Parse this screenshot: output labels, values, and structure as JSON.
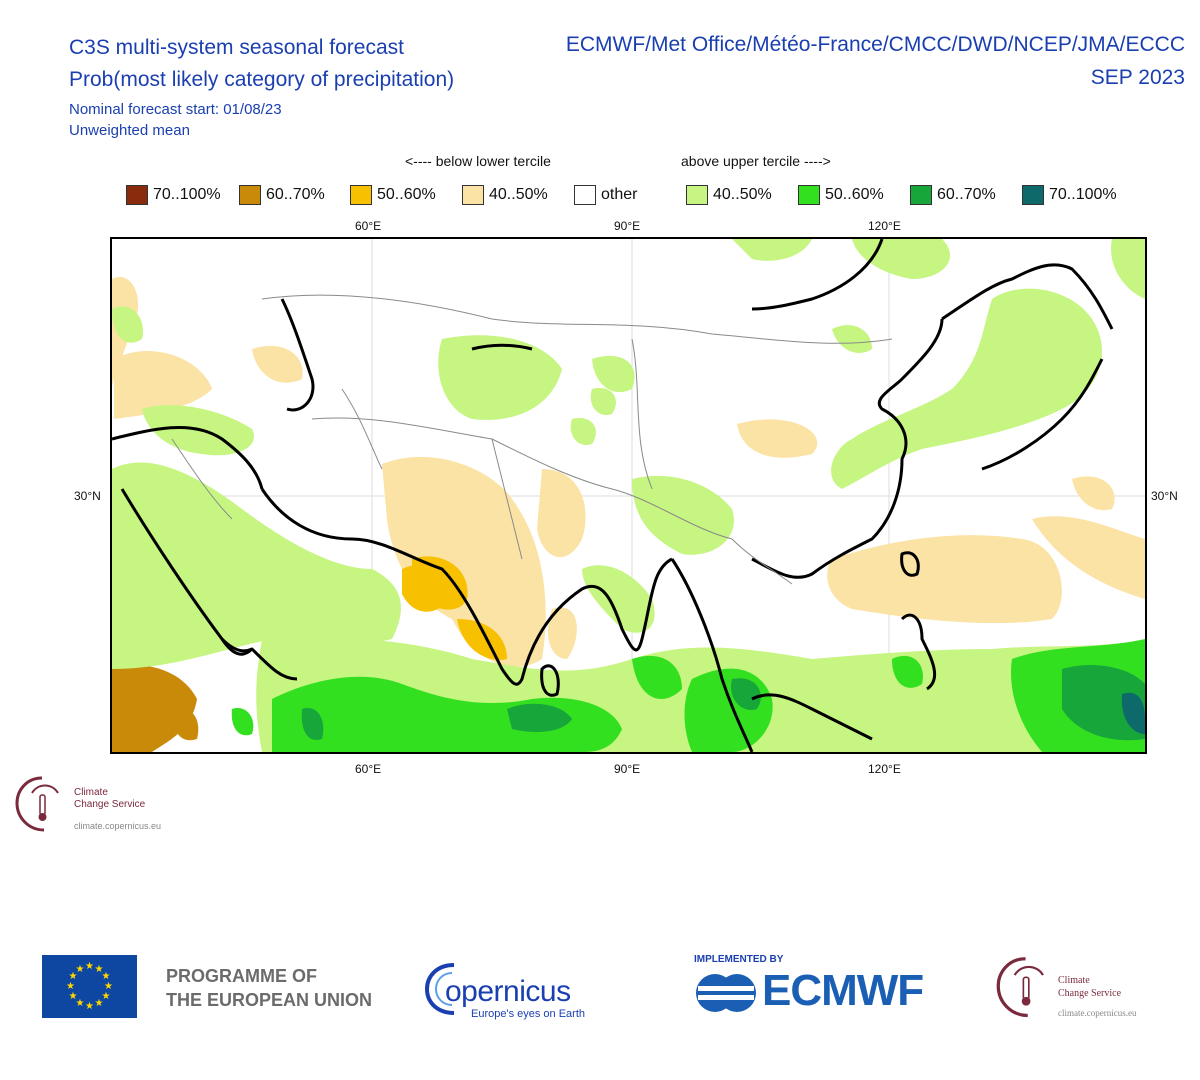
{
  "header": {
    "title_line1": "C3S multi-system seasonal forecast",
    "title_line2": "Prob(most likely category of precipitation)",
    "start": "Nominal forecast start: 01/08/23",
    "mean": "Unweighted mean",
    "models": "ECMWF/Met Office/Météo-France/CMCC/DWD/NCEP/JMA/ECCC",
    "month": "SEP 2023"
  },
  "legend": {
    "below_caption": "<---- below lower tercile",
    "above_caption": "above upper tercile ---->",
    "items": [
      {
        "label": "70..100%",
        "color": "#8b2b0e"
      },
      {
        "label": "60..70%",
        "color": "#c98a0a"
      },
      {
        "label": "50..60%",
        "color": "#f7c000"
      },
      {
        "label": "40..50%",
        "color": "#fbe3a5"
      },
      {
        "label": "other",
        "color": "#ffffff"
      },
      {
        "label": "40..50%",
        "color": "#c6f582"
      },
      {
        "label": "50..60%",
        "color": "#33e020"
      },
      {
        "label": "60..70%",
        "color": "#17a63a"
      },
      {
        "label": "70..100%",
        "color": "#0e6a6a"
      }
    ]
  },
  "map": {
    "lon_ticks_top": [
      "60°E",
      "90°E",
      "120°E"
    ],
    "lon_ticks_bottom": [
      "60°E",
      "90°E",
      "120°E"
    ],
    "lat_label_left": "30°N",
    "lat_label_right": "30°N"
  },
  "logos": {
    "c3s_line1": "Climate",
    "c3s_line2": "Change Service",
    "c3s_url": "climate.copernicus.eu",
    "eu_line1": "PROGRAMME OF",
    "eu_line2": "THE EUROPEAN UNION",
    "copernicus_word": "opernicus",
    "copernicus_tag": "Europe's eyes on Earth",
    "implemented_by": "IMPLEMENTED BY",
    "ecmwf_word": "ECMWF"
  }
}
